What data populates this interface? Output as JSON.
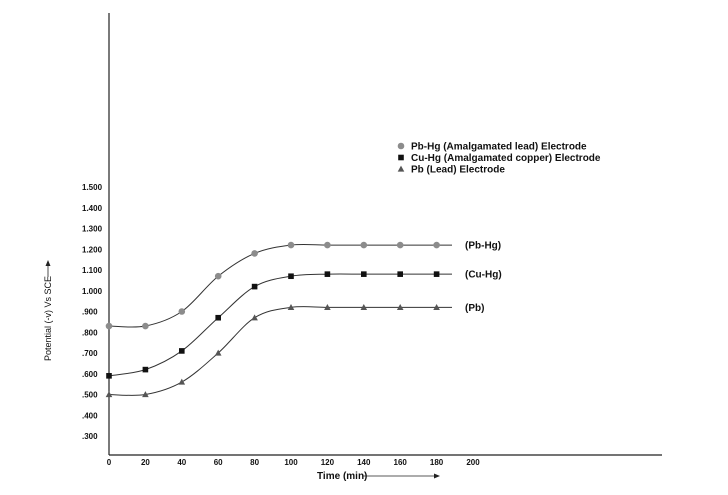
{
  "chart_data": {
    "type": "line",
    "xlabel": "Time (min)",
    "ylabel": "Potential (-v) Vs SCE",
    "x_ticks": [
      "0",
      "20",
      "40",
      "60",
      "80",
      "100",
      "120",
      "140",
      "160",
      "180",
      "200"
    ],
    "y_ticks": [
      ".300",
      ".400",
      ".500",
      ".600",
      ".700",
      ".800",
      ".900",
      "1.000",
      "1.100",
      "1.200",
      "1.300",
      "1.400",
      "1.500"
    ],
    "xlim": [
      0,
      200
    ],
    "ylim": [
      0.3,
      1.5
    ],
    "grid": false,
    "legend_position": "top-right",
    "legend": [
      {
        "marker": "circle",
        "label": "Pb-Hg (Amalgamated lead) Electrode"
      },
      {
        "marker": "square",
        "label": "Cu-Hg (Amalgamated copper) Electrode"
      },
      {
        "marker": "triangle",
        "label": "Pb (Lead) Electrode"
      }
    ],
    "series": [
      {
        "name": "(Pb-Hg)",
        "marker": "circle",
        "color": "#8c8c8c",
        "x": [
          0,
          20,
          40,
          60,
          80,
          100,
          120,
          140,
          160,
          180
        ],
        "y": [
          0.83,
          0.83,
          0.9,
          1.07,
          1.18,
          1.22,
          1.22,
          1.22,
          1.22,
          1.22
        ]
      },
      {
        "name": "(Cu-Hg)",
        "marker": "square",
        "color": "#111111",
        "x": [
          0,
          20,
          40,
          60,
          80,
          100,
          120,
          140,
          160,
          180
        ],
        "y": [
          0.59,
          0.62,
          0.71,
          0.87,
          1.02,
          1.07,
          1.08,
          1.08,
          1.08,
          1.08
        ]
      },
      {
        "name": "(Pb)",
        "marker": "triangle",
        "color": "#555555",
        "x": [
          0,
          20,
          40,
          60,
          80,
          100,
          120,
          140,
          160,
          180
        ],
        "y": [
          0.5,
          0.5,
          0.56,
          0.7,
          0.87,
          0.92,
          0.92,
          0.92,
          0.92,
          0.92
        ]
      }
    ]
  }
}
